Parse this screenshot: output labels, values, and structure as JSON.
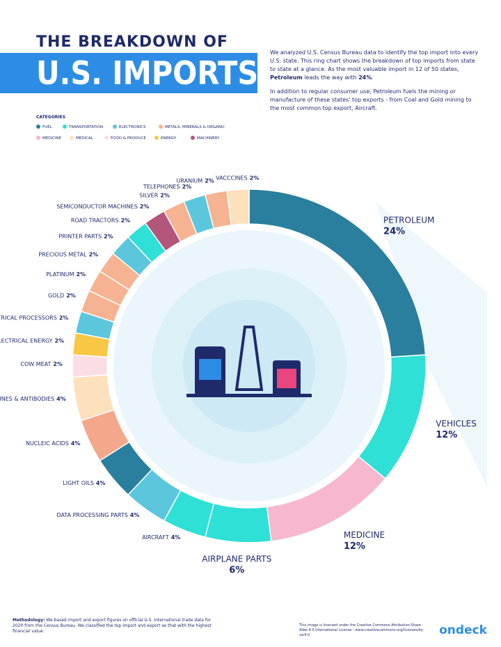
{
  "header": {
    "title_small": "THE BREAKDOWN OF",
    "title_big": "U.S. IMPORTS",
    "intro": [
      "We analyzed U.S. Census Bureau data to identify the top import into every U.S. state. This ring chart shows the breakdown of top imports from state to state at a glance. As the most valuable import in 12 of 50 states, ",
      "Petroleum",
      " leads the way with ",
      "24%",
      "."
    ],
    "intro2": "In addition to regular consumer use, Petroleum fuels the mining or manufacture of these states' top exports - from Coal and Gold mining to the most common top export, Aircraft."
  },
  "chart_data": {
    "type": "donut",
    "legend_title": "CATEGORIES",
    "legend": [
      {
        "name": "FUEL",
        "color": "#2a7f9e"
      },
      {
        "name": "TRANSPORTATION",
        "color": "#2fe0d6"
      },
      {
        "name": "ELECTRONICS",
        "color": "#5cc6dc"
      },
      {
        "name": "METALS, MINERALS & ORGANIC",
        "color": "#f6b391"
      },
      {
        "name": "MEDICINE",
        "color": "#f6b7cf"
      },
      {
        "name": "MEDICAL",
        "color": "#fde0bc"
      },
      {
        "name": "FOOD & PRODUCE",
        "color": "#fbdde4"
      },
      {
        "name": "ENERGY",
        "color": "#f8c844"
      },
      {
        "name": "MACHINERY",
        "color": "#b4567b"
      }
    ],
    "categories": [
      "PETROLEUM",
      "VEHICLES",
      "MEDICINE",
      "AIRPLANE PARTS",
      "AIRCRAFT",
      "DATA PROCESSING PARTS",
      "LIGHT OILS",
      "NUCLEIC ACIDS",
      "VACCINES & ANTIBODIES",
      "COW MEAT",
      "ELECTRICAL ENERGY",
      "ELECTRICAL PROCESSORS",
      "GOLD",
      "PLATINUM",
      "PRECIOUS METAL",
      "PRINTER PARTS",
      "ROAD TRACTORS",
      "SEMICONDUCTOR MACHINES",
      "SILVER",
      "TELEPHONES",
      "URANIUM",
      "VACCCINES"
    ],
    "values": [
      24,
      12,
      12,
      6,
      4,
      4,
      4,
      4,
      4,
      2,
      2,
      2,
      2,
      2,
      2,
      2,
      2,
      2,
      2,
      2,
      2,
      2
    ],
    "value_labels": [
      "24%",
      "12%",
      "12%",
      "6%",
      "4%",
      "4%",
      "4%",
      "4%",
      "4%",
      "2%",
      "2%",
      "2%",
      "2%",
      "2%",
      "2%",
      "2%",
      "2%",
      "2%",
      "2%",
      "2%",
      "2%",
      "2%"
    ],
    "colors": [
      "#2a7f9e",
      "#2fe0d6",
      "#f6b7cf",
      "#2fe0d6",
      "#2fe0d6",
      "#5cc6dc",
      "#2a7f9e",
      "#f4a88b",
      "#fde0bc",
      "#fbdde4",
      "#f8c844",
      "#5cc6dc",
      "#f6b391",
      "#f6b391",
      "#f6b391",
      "#5cc6dc",
      "#2fe0d6",
      "#b4567b",
      "#f6b391",
      "#5cc6dc",
      "#f6b391",
      "#fde0bc"
    ]
  },
  "footer": {
    "methodology_label": "Methodology:",
    "methodology": " We based import and export figures on official U.S. International trade data for 2020 from the Census Bureau. We classified the top import and export as that with the highest financial value.",
    "license": "This image is licensed under the Creative Commons Attribution-Share Alike 4.0 International License - www.creativecommons.org/licenses/by-sa/4.0",
    "logo": "ondeck"
  }
}
